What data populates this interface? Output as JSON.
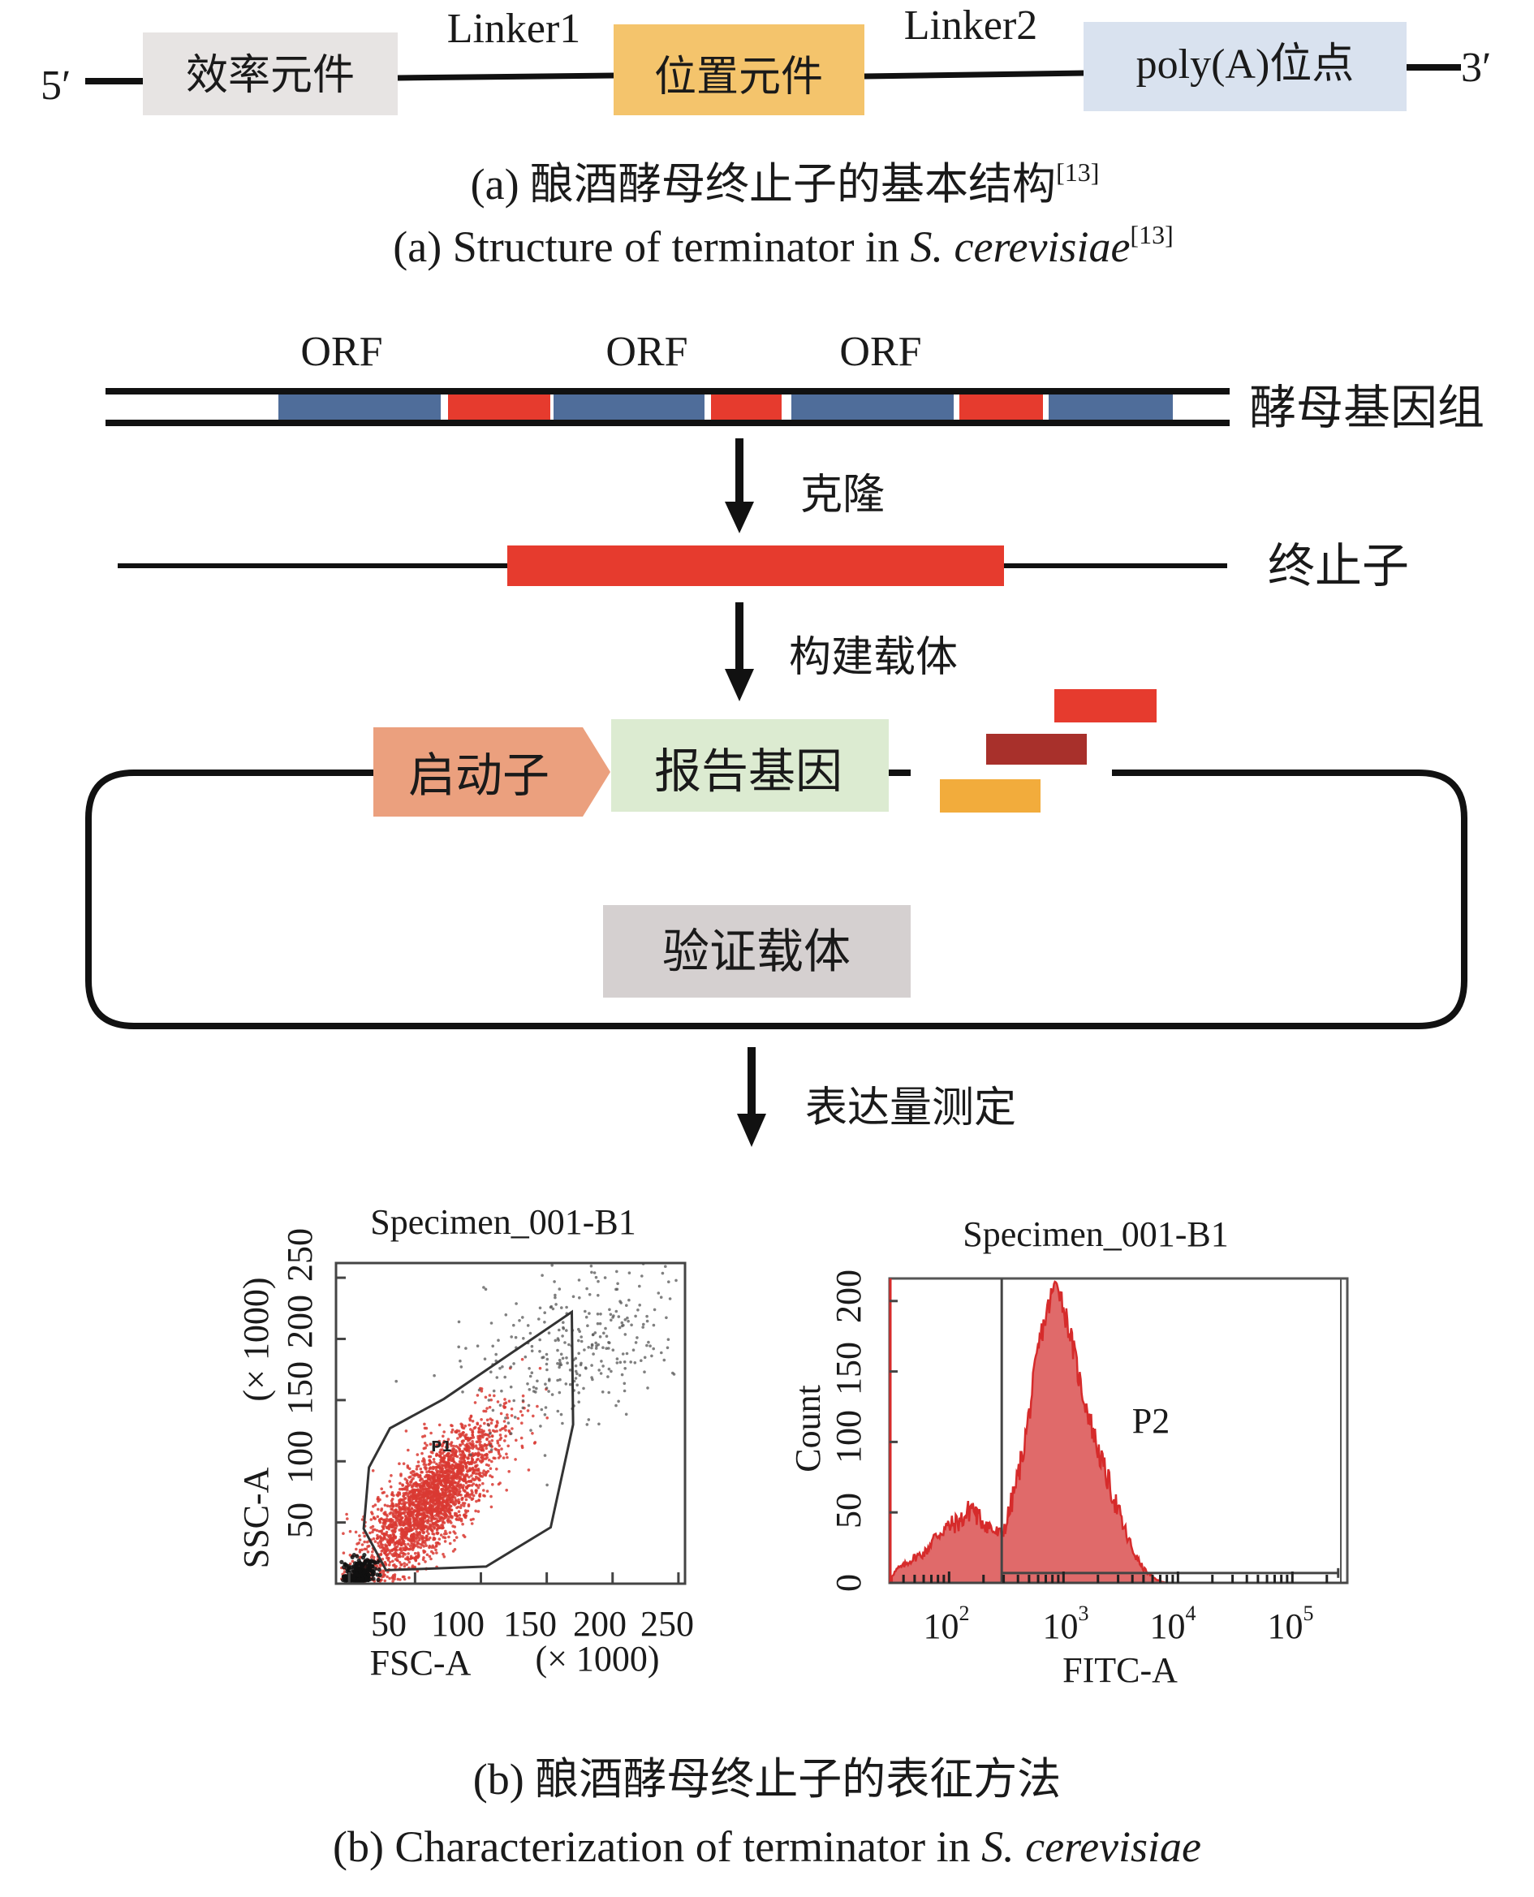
{
  "panel_a": {
    "five_prime": "5′",
    "three_prime": "3′",
    "elements": [
      {
        "label": "效率元件",
        "color": "#e7e4e3"
      },
      {
        "label": "位置元件",
        "color": "#f4c46c"
      },
      {
        "label": "poly(A)位点",
        "color": "#d9e2ef"
      }
    ],
    "linkers": [
      "Linker1",
      "Linker2"
    ],
    "caption_cn": "(a) 酿酒酵母终止子的基本结构",
    "caption_cn_ref": "[13]",
    "caption_en_prefix": "(a) Structure of terminator in ",
    "caption_en_species": "S. cerevisiae",
    "caption_en_ref": "[13]"
  },
  "panel_b": {
    "orf_labels": [
      "ORF",
      "ORF",
      "ORF"
    ],
    "genome_label": "酵母基因组",
    "genome_segments": [
      "orf",
      "terminator",
      "orf",
      "terminator",
      "orf",
      "terminator",
      "orf"
    ],
    "step1_label": "克隆",
    "terminator_label": "终止子",
    "step2_label": "构建载体",
    "promoter_label": "启动子",
    "reporter_label": "报告基因",
    "vector_label": "验证载体",
    "step3_label": "表达量测定",
    "caption_cn": "(b) 酿酒酵母终止子的表征方法",
    "caption_en_prefix": "(b) Characterization of terminator in ",
    "caption_en_species": "S. cerevisiae",
    "colors": {
      "orf": "#4f6d9a",
      "terminator": "#e63b2e",
      "promoter": "#eba07e",
      "reporter": "#dcebd1",
      "vector_box": "#d5d0d0",
      "fragment_red": "#e63b2e",
      "fragment_darkred": "#a8302b",
      "fragment_orange": "#f2ac3c"
    }
  },
  "chart_data": [
    {
      "type": "scatter",
      "title": "Specimen_001-B1",
      "xlabel": "FSC-A",
      "xlabel_unit": "(× 1000)",
      "ylabel": "SSC-A",
      "ylabel_unit": "(× 1000)",
      "xlim": [
        -10,
        255
      ],
      "ylim": [
        0,
        262
      ],
      "xticks": [
        50,
        100,
        150,
        200,
        250
      ],
      "yticks": [
        50,
        100,
        150,
        200,
        250
      ],
      "xtick_labels": [
        "50",
        "100",
        "150",
        "200",
        "250"
      ],
      "ytick_labels": [
        "50",
        "100",
        "150",
        "200",
        "250"
      ],
      "gate": {
        "name": "P1",
        "polygon": [
          [
            28,
            11
          ],
          [
            11,
            45
          ],
          [
            15,
            95
          ],
          [
            31,
            127
          ],
          [
            72,
            151
          ],
          [
            169,
            222
          ],
          [
            170,
            130
          ],
          [
            153,
            46
          ],
          [
            104,
            14
          ]
        ]
      },
      "populations": [
        {
          "name": "P1 (gated)",
          "color": "#d93a32",
          "n": 2600,
          "center": [
            62,
            68
          ],
          "spread_along": 38,
          "spread_across": 13,
          "angle_deg": 52
        },
        {
          "name": "debris",
          "color": "#111111",
          "n": 260,
          "center": [
            8,
            8
          ],
          "spread_along": 7,
          "spread_across": 5,
          "angle_deg": 45
        },
        {
          "name": "ungated",
          "color": "#555555",
          "n": 320,
          "center": [
            175,
            195
          ],
          "spread_along": 45,
          "spread_across": 28,
          "angle_deg": 35
        }
      ]
    },
    {
      "type": "area",
      "title": "Specimen_001-B1",
      "xlabel": "FITC-A",
      "ylabel": "Count",
      "xscale": "log",
      "xlim_log10": [
        1.48,
        5.48
      ],
      "ylim": [
        0,
        216
      ],
      "xticks_log10": [
        2,
        3,
        4,
        5
      ],
      "xtick_bases": [
        "10",
        "10",
        "10",
        "10"
      ],
      "xtick_exponents": [
        "2",
        "3",
        "4",
        "5"
      ],
      "yticks": [
        0,
        50,
        100,
        150,
        200
      ],
      "ytick_labels": [
        "0",
        "50",
        "100",
        "150",
        "200"
      ],
      "fill_color": "#e06a6a",
      "line_color": "#d62b2b",
      "x_log10": [
        1.5,
        1.55,
        1.6,
        1.65,
        1.7,
        1.75,
        1.8,
        1.85,
        1.9,
        1.95,
        2.0,
        2.05,
        2.1,
        2.15,
        2.2,
        2.25,
        2.3,
        2.35,
        2.4,
        2.45,
        2.5,
        2.55,
        2.6,
        2.65,
        2.7,
        2.75,
        2.8,
        2.85,
        2.9,
        2.95,
        3.0,
        3.05,
        3.1,
        3.15,
        3.2,
        3.25,
        3.3,
        3.35,
        3.4,
        3.45,
        3.5,
        3.55,
        3.6,
        3.65,
        3.7,
        3.75,
        3.8,
        3.85,
        3.9
      ],
      "counts": [
        5,
        10,
        12,
        15,
        18,
        20,
        22,
        30,
        34,
        38,
        40,
        42,
        44,
        48,
        55,
        46,
        44,
        40,
        36,
        34,
        42,
        58,
        75,
        95,
        120,
        150,
        175,
        190,
        205,
        215,
        195,
        180,
        160,
        140,
        125,
        110,
        95,
        82,
        70,
        58,
        45,
        34,
        24,
        16,
        10,
        6,
        3,
        1,
        0
      ],
      "gate": {
        "name": "P2",
        "from_log10": 2.46,
        "to_log10": 5.4,
        "level": 7
      }
    }
  ]
}
